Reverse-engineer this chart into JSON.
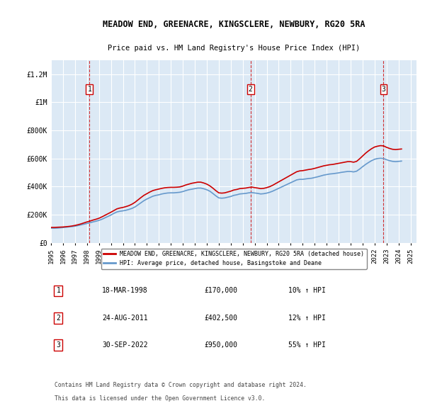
{
  "title": "MEADOW END, GREENACRE, KINGSCLERE, NEWBURY, RG20 5RA",
  "subtitle": "Price paid vs. HM Land Registry's House Price Index (HPI)",
  "ylabel_ticks": [
    "£0",
    "£200K",
    "£400K",
    "£600K",
    "£800K",
    "£1M",
    "£1.2M"
  ],
  "ytick_values": [
    0,
    200000,
    400000,
    600000,
    800000,
    1000000,
    1200000
  ],
  "ylim": [
    0,
    1300000
  ],
  "xlim_start": 1995.0,
  "xlim_end": 2025.5,
  "bg_color": "#dce9f5",
  "plot_bg": "#dce9f5",
  "grid_color": "#ffffff",
  "sale_dates": [
    1998.21,
    2011.65,
    2022.75
  ],
  "sale_prices": [
    170000,
    402500,
    950000
  ],
  "sale_labels": [
    "1",
    "2",
    "3"
  ],
  "dashed_line_color": "#cc0000",
  "dashed_line_alpha": 0.8,
  "hpi_line_color": "#6699cc",
  "price_line_color": "#cc0000",
  "legend_label_price": "MEADOW END, GREENACRE, KINGSCLERE, NEWBURY, RG20 5RA (detached house)",
  "legend_label_hpi": "HPI: Average price, detached house, Basingstoke and Deane",
  "table_entries": [
    {
      "num": "1",
      "date": "18-MAR-1998",
      "price": "£170,000",
      "pct": "10% ↑ HPI"
    },
    {
      "num": "2",
      "date": "24-AUG-2011",
      "price": "£402,500",
      "pct": "12% ↑ HPI"
    },
    {
      "num": "3",
      "date": "30-SEP-2022",
      "price": "£950,000",
      "pct": "55% ↑ HPI"
    }
  ],
  "footer_line1": "Contains HM Land Registry data © Crown copyright and database right 2024.",
  "footer_line2": "This data is licensed under the Open Government Licence v3.0.",
  "hpi_data_x": [
    1995.0,
    1995.25,
    1995.5,
    1995.75,
    1996.0,
    1996.25,
    1996.5,
    1996.75,
    1997.0,
    1997.25,
    1997.5,
    1997.75,
    1998.0,
    1998.25,
    1998.5,
    1998.75,
    1999.0,
    1999.25,
    1999.5,
    1999.75,
    2000.0,
    2000.25,
    2000.5,
    2000.75,
    2001.0,
    2001.25,
    2001.5,
    2001.75,
    2002.0,
    2002.25,
    2002.5,
    2002.75,
    2003.0,
    2003.25,
    2003.5,
    2003.75,
    2004.0,
    2004.25,
    2004.5,
    2004.75,
    2005.0,
    2005.25,
    2005.5,
    2005.75,
    2006.0,
    2006.25,
    2006.5,
    2006.75,
    2007.0,
    2007.25,
    2007.5,
    2007.75,
    2008.0,
    2008.25,
    2008.5,
    2008.75,
    2009.0,
    2009.25,
    2009.5,
    2009.75,
    2010.0,
    2010.25,
    2010.5,
    2010.75,
    2011.0,
    2011.25,
    2011.5,
    2011.75,
    2012.0,
    2012.25,
    2012.5,
    2012.75,
    2013.0,
    2013.25,
    2013.5,
    2013.75,
    2014.0,
    2014.25,
    2014.5,
    2014.75,
    2015.0,
    2015.25,
    2015.5,
    2015.75,
    2016.0,
    2016.25,
    2016.5,
    2016.75,
    2017.0,
    2017.25,
    2017.5,
    2017.75,
    2018.0,
    2018.25,
    2018.5,
    2018.75,
    2019.0,
    2019.25,
    2019.5,
    2019.75,
    2020.0,
    2020.25,
    2020.5,
    2020.75,
    2021.0,
    2021.25,
    2021.5,
    2021.75,
    2022.0,
    2022.25,
    2022.5,
    2022.75,
    2023.0,
    2023.25,
    2023.5,
    2023.75,
    2024.0,
    2024.25
  ],
  "hpi_data_y": [
    105000,
    104000,
    105000,
    107000,
    109000,
    111000,
    114000,
    116000,
    119000,
    123000,
    128000,
    133000,
    138000,
    143000,
    149000,
    154000,
    160000,
    168000,
    178000,
    188000,
    198000,
    210000,
    220000,
    225000,
    228000,
    232000,
    238000,
    245000,
    255000,
    270000,
    285000,
    300000,
    312000,
    322000,
    332000,
    338000,
    342000,
    348000,
    352000,
    355000,
    356000,
    356000,
    358000,
    360000,
    365000,
    372000,
    378000,
    382000,
    386000,
    390000,
    390000,
    385000,
    378000,
    368000,
    352000,
    335000,
    320000,
    318000,
    320000,
    325000,
    330000,
    338000,
    342000,
    348000,
    350000,
    352000,
    356000,
    358000,
    355000,
    352000,
    348000,
    350000,
    354000,
    360000,
    368000,
    378000,
    388000,
    398000,
    408000,
    418000,
    428000,
    438000,
    448000,
    452000,
    452000,
    455000,
    458000,
    460000,
    465000,
    470000,
    476000,
    482000,
    486000,
    490000,
    492000,
    495000,
    498000,
    502000,
    505000,
    508000,
    508000,
    505000,
    510000,
    525000,
    542000,
    558000,
    572000,
    585000,
    595000,
    600000,
    602000,
    600000,
    592000,
    585000,
    580000,
    578000,
    580000,
    582000
  ],
  "price_data_x": [
    1995.0,
    1995.25,
    1995.5,
    1995.75,
    1996.0,
    1996.25,
    1996.5,
    1996.75,
    1997.0,
    1997.25,
    1997.5,
    1997.75,
    1998.0,
    1998.25,
    1998.5,
    1998.75,
    1999.0,
    1999.25,
    1999.5,
    1999.75,
    2000.0,
    2000.25,
    2000.5,
    2000.75,
    2001.0,
    2001.25,
    2001.5,
    2001.75,
    2002.0,
    2002.25,
    2002.5,
    2002.75,
    2003.0,
    2003.25,
    2003.5,
    2003.75,
    2004.0,
    2004.25,
    2004.5,
    2004.75,
    2005.0,
    2005.25,
    2005.5,
    2005.75,
    2006.0,
    2006.25,
    2006.5,
    2006.75,
    2007.0,
    2007.25,
    2007.5,
    2007.75,
    2008.0,
    2008.25,
    2008.5,
    2008.75,
    2009.0,
    2009.25,
    2009.5,
    2009.75,
    2010.0,
    2010.25,
    2010.5,
    2010.75,
    2011.0,
    2011.25,
    2011.5,
    2011.75,
    2012.0,
    2012.25,
    2012.5,
    2012.75,
    2013.0,
    2013.25,
    2013.5,
    2013.75,
    2014.0,
    2014.25,
    2014.5,
    2014.75,
    2015.0,
    2015.25,
    2015.5,
    2015.75,
    2016.0,
    2016.25,
    2016.5,
    2016.75,
    2017.0,
    2017.25,
    2017.5,
    2017.75,
    2018.0,
    2018.25,
    2018.5,
    2018.75,
    2019.0,
    2019.25,
    2019.5,
    2019.75,
    2020.0,
    2020.25,
    2020.5,
    2020.75,
    2021.0,
    2021.25,
    2021.5,
    2021.75,
    2022.0,
    2022.25,
    2022.5,
    2022.75,
    2023.0,
    2023.25,
    2023.5,
    2023.75,
    2024.0,
    2024.25
  ],
  "price_data_y": [
    110000,
    110000,
    111000,
    112000,
    113000,
    115000,
    117000,
    120000,
    124000,
    129000,
    135000,
    142000,
    149000,
    155000,
    162000,
    168000,
    175000,
    185000,
    196000,
    207000,
    218000,
    230000,
    242000,
    248000,
    252000,
    258000,
    265000,
    275000,
    288000,
    305000,
    322000,
    338000,
    350000,
    362000,
    372000,
    378000,
    383000,
    388000,
    392000,
    394000,
    395000,
    395000,
    396000,
    398000,
    404000,
    412000,
    418000,
    424000,
    428000,
    432000,
    432000,
    426000,
    418000,
    406000,
    390000,
    372000,
    356000,
    354000,
    356000,
    362000,
    368000,
    376000,
    380000,
    386000,
    388000,
    390000,
    394000,
    397000,
    393000,
    390000,
    386000,
    388000,
    393000,
    400000,
    410000,
    422000,
    434000,
    446000,
    458000,
    470000,
    482000,
    494000,
    506000,
    512000,
    514000,
    518000,
    522000,
    525000,
    530000,
    536000,
    542000,
    548000,
    552000,
    556000,
    558000,
    562000,
    566000,
    570000,
    574000,
    578000,
    578000,
    574000,
    580000,
    598000,
    618000,
    638000,
    655000,
    670000,
    682000,
    688000,
    692000,
    690000,
    680000,
    672000,
    666000,
    664000,
    666000,
    668000
  ]
}
